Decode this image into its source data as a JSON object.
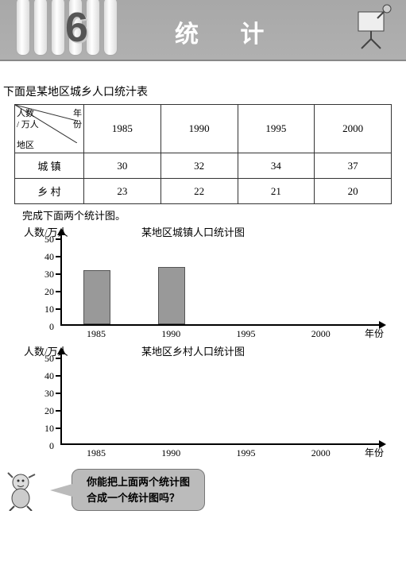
{
  "header": {
    "chapter_number": "6",
    "title": "统 计"
  },
  "intro_text": "下面是某地区城乡人口统汁表",
  "table": {
    "corner": {
      "row_label": "人数",
      "row_unit": "/ 万人",
      "col_label": "年份",
      "side_label": "地区"
    },
    "years": [
      "1985",
      "1990",
      "1995",
      "2000"
    ],
    "rows": [
      {
        "label": "城 镇",
        "values": [
          "30",
          "32",
          "34",
          "37"
        ]
      },
      {
        "label": "乡 村",
        "values": [
          "23",
          "22",
          "21",
          "20"
        ]
      }
    ]
  },
  "instruction": "完成下面两个统计图。",
  "chart_common": {
    "y_label": "人数/万人",
    "x_label": "年份",
    "y_ticks": [
      10,
      20,
      30,
      40,
      50
    ],
    "y_max": 50,
    "categories": [
      "1985",
      "1990",
      "1995",
      "2000"
    ],
    "bar_color": "#999999",
    "axis_color": "#000000",
    "bg_color": "#ffffff"
  },
  "chart1": {
    "title": "某地区城镇人口统计图",
    "bars": [
      {
        "cat": "1985",
        "value": 30
      },
      {
        "cat": "1990",
        "value": 32
      }
    ]
  },
  "chart2": {
    "title": "某地区乡村人口统计图",
    "bars": []
  },
  "bubble": {
    "line1": "你能把上面两个统计图",
    "line2": "合成一个统计图吗？"
  }
}
